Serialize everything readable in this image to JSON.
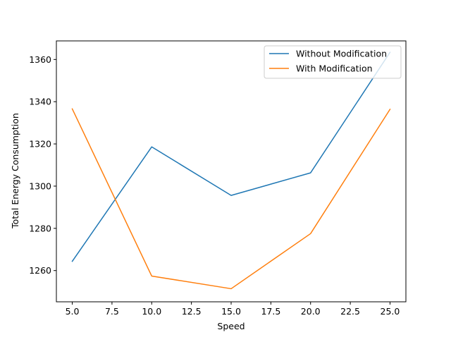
{
  "chart_data": {
    "type": "line",
    "title": "",
    "xlabel": "Speed",
    "ylabel": "Total Energy Consumption",
    "x": [
      5,
      10,
      15,
      20,
      25
    ],
    "xlim": [
      4.0,
      26.0
    ],
    "ylim": [
      1245.2,
      1368.8
    ],
    "xticks": [
      5.0,
      7.5,
      10.0,
      12.5,
      15.0,
      17.5,
      20.0,
      22.5,
      25.0
    ],
    "xtick_labels": [
      "5.0",
      "7.5",
      "10.0",
      "12.5",
      "15.0",
      "17.5",
      "20.0",
      "22.5",
      "25.0"
    ],
    "yticks": [
      1260,
      1280,
      1300,
      1320,
      1340,
      1360
    ],
    "ytick_labels": [
      "1260",
      "1280",
      "1300",
      "1320",
      "1340",
      "1360"
    ],
    "grid": false,
    "legend_position": "top-right",
    "series": [
      {
        "name": "Without Modification",
        "color": "#1f77b4",
        "values": [
          1264.4,
          1318.6,
          1295.6,
          1306.3,
          1363.4
        ]
      },
      {
        "name": "With Modification",
        "color": "#ff7f0e",
        "values": [
          1336.6,
          1257.4,
          1251.4,
          1277.5,
          1336.4
        ]
      }
    ]
  }
}
